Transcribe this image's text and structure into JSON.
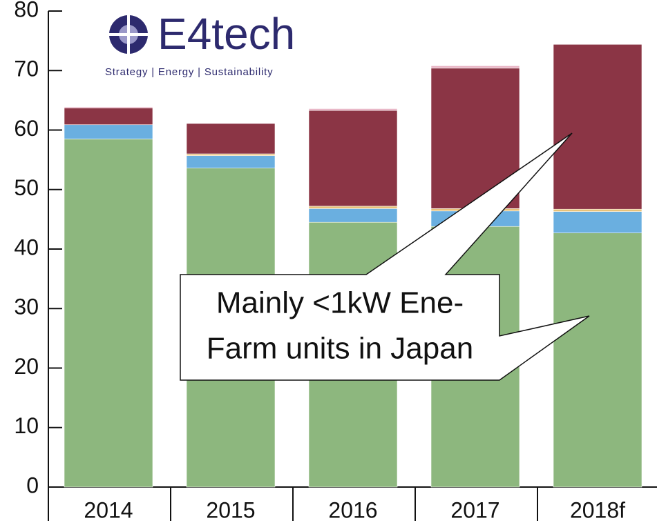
{
  "chart_data": {
    "type": "stacked_bar",
    "categories": [
      "2014",
      "2015",
      "2016",
      "2017",
      "2018f"
    ],
    "series": [
      {
        "color": "#8db77e",
        "values": [
          58.5,
          53.6,
          44.5,
          43.8,
          42.7
        ]
      },
      {
        "color": "#6aafe0",
        "values": [
          2.4,
          2.1,
          2.3,
          2.6,
          3.6
        ]
      },
      {
        "color": "#e8c27a",
        "values": [
          0,
          0.3,
          0.4,
          0.4,
          0.4
        ]
      },
      {
        "color": "#8b3545",
        "values": [
          2.8,
          5.1,
          16.1,
          23.6,
          27.7
        ]
      },
      {
        "color": "#e8b4c4",
        "values": [
          0.2,
          0,
          0.3,
          0.4,
          0
        ]
      }
    ],
    "ylim": [
      0,
      80
    ],
    "yticks": [
      0,
      10,
      20,
      30,
      40,
      50,
      60,
      70,
      80
    ],
    "logo": {
      "name": "E4tech",
      "tagline": "Strategy | Energy | Sustainability"
    },
    "annotation": [
      "Mainly <1kW Ene-",
      "Farm units in Japan"
    ]
  }
}
